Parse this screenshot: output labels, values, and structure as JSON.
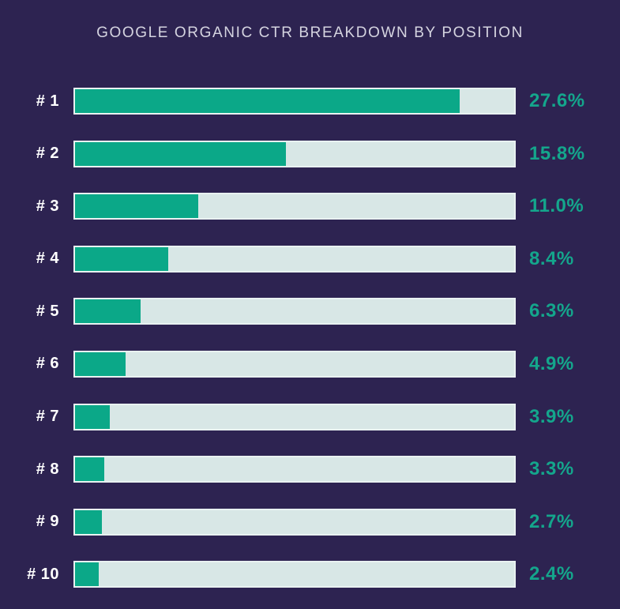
{
  "title": "GOOGLE ORGANIC CTR BREAKDOWN BY POSITION",
  "colors": {
    "background": "#2D2351",
    "accent_text": "#14A68C",
    "bar_fill": "#0BA888",
    "bar_track": "#D8E7E6",
    "title_text": "#D5D4E0",
    "label_text": "#FFFFFF"
  },
  "chart_data": {
    "type": "bar",
    "orientation": "horizontal",
    "title": "GOOGLE ORGANIC CTR BREAKDOWN BY POSITION",
    "unit": "%",
    "categories": [
      "# 1",
      "# 2",
      "# 3",
      "# 4",
      "# 5",
      "# 6",
      "# 7",
      "# 8",
      "# 9",
      "# 10"
    ],
    "values": [
      27.6,
      15.8,
      11.0,
      8.4,
      6.3,
      4.9,
      3.9,
      3.3,
      2.7,
      2.4
    ],
    "value_labels": [
      "27.6%",
      "15.8%",
      "11.0%",
      "8.4%",
      "6.3%",
      "4.9%",
      "3.9%",
      "3.3%",
      "2.7%",
      "2.4%"
    ],
    "fill_pct_of_track": [
      87.5,
      48.0,
      28.0,
      21.3,
      15.0,
      11.6,
      8.0,
      6.6,
      6.1,
      5.4
    ],
    "xlim": [
      0,
      100
    ],
    "grid": false,
    "legend": false
  }
}
